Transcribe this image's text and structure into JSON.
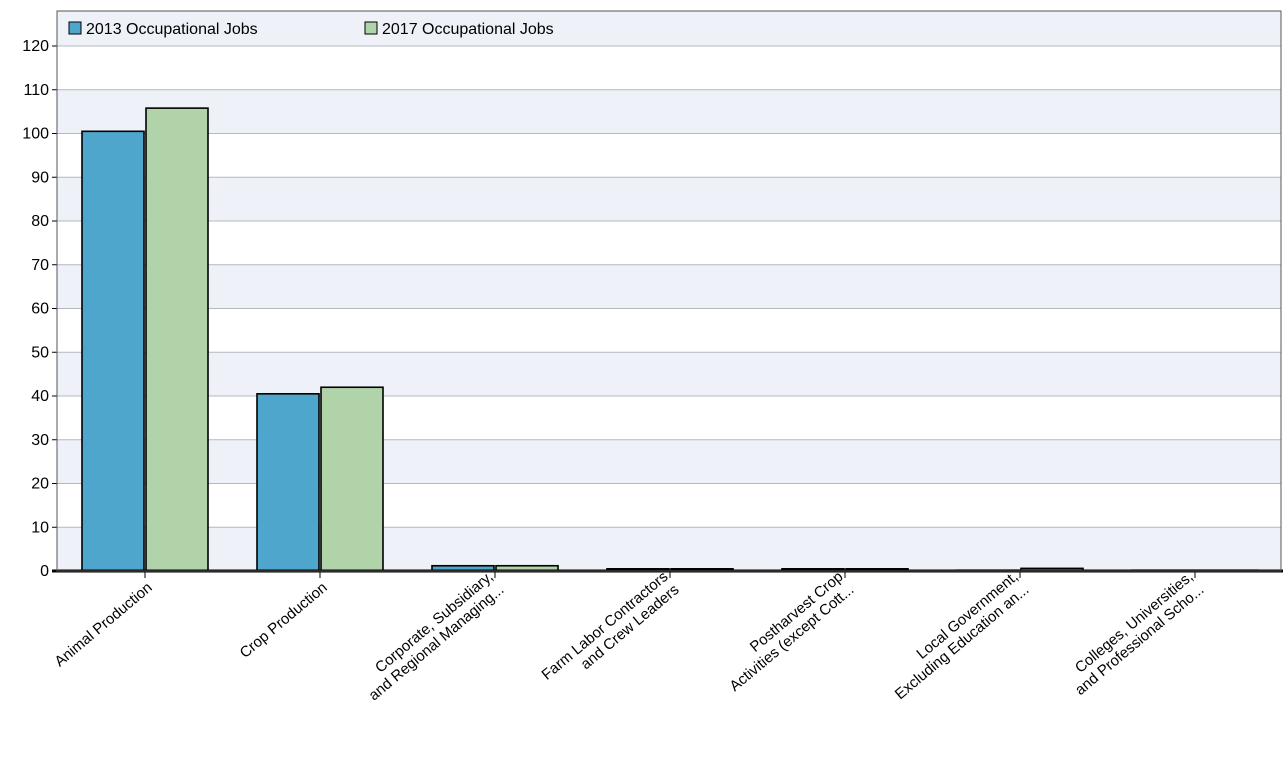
{
  "chart_data": {
    "type": "bar",
    "categories": [
      [
        "Animal Production"
      ],
      [
        "Crop Production"
      ],
      [
        "Corporate, Subsidiary,",
        "and Regional Managing..."
      ],
      [
        "Farm Labor Contractors",
        "and Crew Leaders"
      ],
      [
        "Postharvest Crop",
        "Activities (except Cott..."
      ],
      [
        "Local Government,",
        "Excluding Education an..."
      ],
      [
        "Colleges, Universities,",
        "and Professional Scho..."
      ]
    ],
    "series": [
      {
        "name": "2013 Occupational Jobs",
        "color": "#4fa6cc",
        "values": [
          100.5,
          40.5,
          1.2,
          0.5,
          0.5,
          0.1,
          0.1
        ]
      },
      {
        "name": "2017 Occupational Jobs",
        "color": "#b0d3aa",
        "values": [
          105.8,
          42.0,
          1.2,
          0.5,
          0.5,
          0.6,
          0.1
        ]
      }
    ],
    "ylim": [
      0,
      120
    ],
    "yticks": [
      0,
      10,
      20,
      30,
      40,
      50,
      60,
      70,
      80,
      90,
      100,
      110,
      120
    ],
    "grid": true,
    "legend_position": "top-left"
  }
}
